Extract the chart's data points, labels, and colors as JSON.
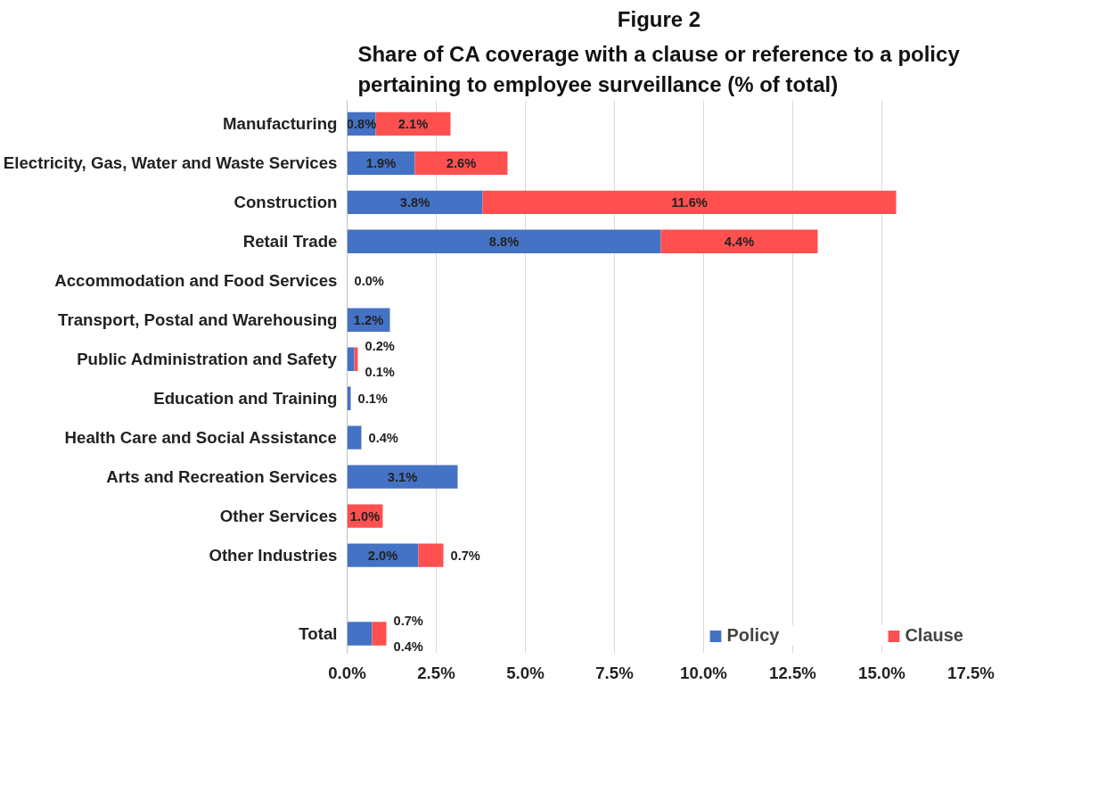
{
  "chart_data": {
    "type": "bar",
    "orientation": "horizontal",
    "stacked": true,
    "title": "Figure 2",
    "subtitle": "Share of CA coverage with a clause or reference to a policy pertaining to employee surveillance (% of total)",
    "categories": [
      "Manufacturing",
      "Electricity, Gas, Water and Waste Services",
      "Construction",
      "Retail Trade",
      "Accommodation and Food Services",
      "Transport, Postal and Warehousing",
      "Public Administration and Safety",
      "Education and Training",
      "Health Care and Social Assistance",
      "Arts and Recreation Services",
      "Other Services",
      "Other Industries",
      null,
      "Total"
    ],
    "series": [
      {
        "name": "Policy",
        "color": "#4472c4",
        "values": [
          0.8,
          1.9,
          3.8,
          8.8,
          0.0,
          1.2,
          0.2,
          0.1,
          0.4,
          3.1,
          null,
          2.0,
          null,
          0.7
        ],
        "value_labels": [
          "0.8%",
          "1.9%",
          "3.8%",
          "8.8%",
          "0.0%",
          "1.2%",
          "0.2%",
          "0.1%",
          "0.4%",
          "3.1%",
          null,
          "2.0%",
          null,
          "0.7%"
        ]
      },
      {
        "name": "Clause",
        "color": "#ff5050",
        "values": [
          2.1,
          2.6,
          11.6,
          4.4,
          null,
          null,
          0.1,
          null,
          null,
          null,
          1.0,
          0.7,
          null,
          0.4
        ],
        "value_labels": [
          "2.1%",
          "2.6%",
          "11.6%",
          "4.4%",
          null,
          null,
          "0.1%",
          null,
          null,
          null,
          "1.0%",
          "0.7%",
          null,
          "0.4%"
        ]
      }
    ],
    "xlim": [
      0,
      17.5
    ],
    "xticks": [
      {
        "value": 0,
        "label": "0.0%"
      },
      {
        "value": 2.5,
        "label": "2.5%"
      },
      {
        "value": 5,
        "label": "5.0%"
      },
      {
        "value": 7.5,
        "label": "7.5%"
      },
      {
        "value": 10,
        "label": "10.0%"
      },
      {
        "value": 12.5,
        "label": "12.5%"
      },
      {
        "value": 15,
        "label": "15.0%"
      },
      {
        "value": 17.5,
        "label": "17.5%"
      }
    ],
    "grid": "x",
    "legend": "bottom right"
  }
}
